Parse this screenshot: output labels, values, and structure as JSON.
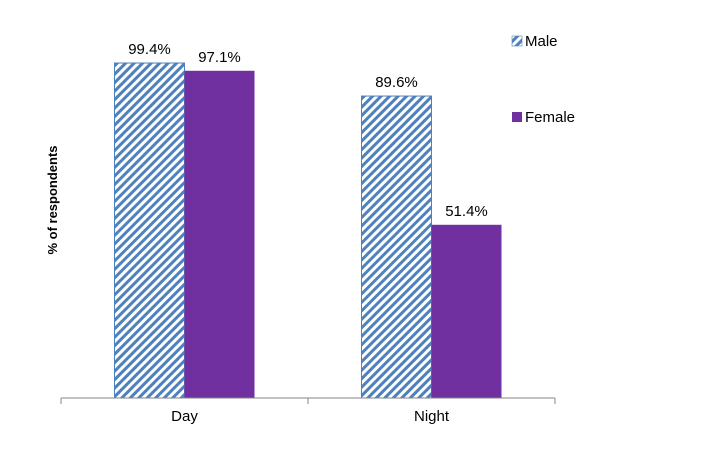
{
  "chart_data": {
    "type": "bar",
    "title": "",
    "xlabel": "",
    "ylabel": "% of respondents",
    "ylim": [
      0,
      100
    ],
    "grid": false,
    "legend_position": "top-right",
    "categories": [
      "Day",
      "Night"
    ],
    "series": [
      {
        "name": "Male",
        "values": [
          99.4,
          89.6
        ],
        "labels": [
          "99.4%",
          "89.6%"
        ],
        "color": "#4F81BD",
        "pattern": "diagonal-hatch"
      },
      {
        "name": "Female",
        "values": [
          97.1,
          51.4
        ],
        "labels": [
          "97.1%",
          "51.4%"
        ],
        "color": "#7030A0",
        "pattern": "solid"
      }
    ]
  }
}
